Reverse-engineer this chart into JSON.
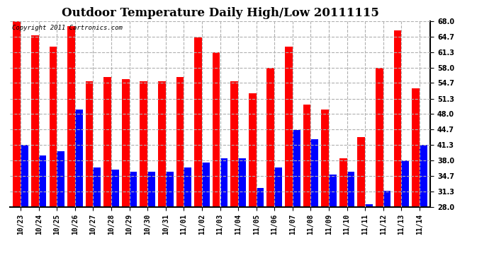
{
  "title": "Outdoor Temperature Daily High/Low 20111115",
  "copyright_text": "Copyright 2011 Cartronics.com",
  "dates": [
    "10/23",
    "10/24",
    "10/25",
    "10/26",
    "10/27",
    "10/28",
    "10/29",
    "10/30",
    "10/31",
    "11/01",
    "11/02",
    "11/03",
    "11/04",
    "11/05",
    "11/06",
    "11/07",
    "11/08",
    "11/09",
    "11/10",
    "11/11",
    "11/12",
    "11/13",
    "11/14"
  ],
  "highs": [
    68.0,
    65.0,
    62.5,
    67.0,
    55.0,
    56.0,
    55.5,
    55.0,
    55.0,
    56.0,
    64.5,
    61.3,
    55.0,
    52.5,
    58.0,
    62.5,
    50.0,
    49.0,
    38.5,
    43.0,
    58.0,
    66.0,
    53.5
  ],
  "lows": [
    41.3,
    39.0,
    40.0,
    49.0,
    36.5,
    36.0,
    35.5,
    35.5,
    35.5,
    36.5,
    37.5,
    38.5,
    38.5,
    32.0,
    36.5,
    44.5,
    42.5,
    35.0,
    35.5,
    28.5,
    31.5,
    38.0,
    41.3
  ],
  "high_color": "#ff0000",
  "low_color": "#0000ff",
  "bg_color": "#ffffff",
  "grid_color": "#b0b0b0",
  "ymin": 28.0,
  "ymax": 68.0,
  "yticks": [
    28.0,
    31.3,
    34.7,
    38.0,
    41.3,
    44.7,
    48.0,
    51.3,
    54.7,
    58.0,
    61.3,
    64.7,
    68.0
  ],
  "bar_width": 0.42,
  "title_fontsize": 12,
  "tick_fontsize": 7,
  "copyright_fontsize": 6.5
}
